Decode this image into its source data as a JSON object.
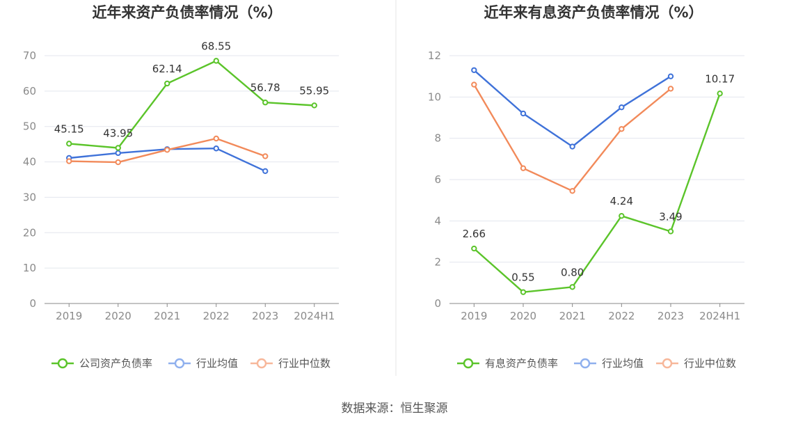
{
  "source_text": "数据来源：恒生聚源",
  "chart_data": [
    {
      "type": "line",
      "title": "近年来资产负债率情况（%）",
      "categories": [
        "2019",
        "2020",
        "2021",
        "2022",
        "2023",
        "2024H1"
      ],
      "ylim": [
        0,
        70
      ],
      "yticks": [
        0,
        10,
        20,
        30,
        40,
        50,
        60,
        70
      ],
      "ytick_labels": [
        "0",
        "10",
        "20",
        "30",
        "40",
        "50",
        "60",
        "70"
      ],
      "grid": true,
      "legend_position": "bottom",
      "series": [
        {
          "name": "公司资产负债率",
          "color": "#5bc42a",
          "values": [
            45.15,
            43.95,
            62.14,
            68.55,
            56.78,
            55.95
          ],
          "labels": [
            "45.15",
            "43.95",
            "62.14",
            "68.55",
            "56.78",
            "55.95"
          ]
        },
        {
          "name": "行业均值",
          "color": "#3f72d9",
          "values": [
            41.1,
            42.5,
            43.6,
            43.8,
            37.4,
            null
          ]
        },
        {
          "name": "行业中位数",
          "color": "#f28a5a",
          "values": [
            40.2,
            39.9,
            43.4,
            46.6,
            41.6,
            null
          ]
        }
      ]
    },
    {
      "type": "line",
      "title": "近年来有息资产负债率情况（%）",
      "categories": [
        "2019",
        "2020",
        "2021",
        "2022",
        "2023",
        "2024H1"
      ],
      "ylim": [
        0,
        12
      ],
      "yticks": [
        0,
        2,
        4,
        6,
        8,
        10,
        12
      ],
      "ytick_labels": [
        "0",
        "2",
        "4",
        "6",
        "8",
        "10",
        "12"
      ],
      "grid": true,
      "legend_position": "bottom",
      "series": [
        {
          "name": "有息资产负债率",
          "color": "#5bc42a",
          "values": [
            2.66,
            0.55,
            0.8,
            4.24,
            3.49,
            10.17
          ],
          "labels": [
            "2.66",
            "0.55",
            "0.80",
            "4.24",
            "3.49",
            "10.17"
          ]
        },
        {
          "name": "行业均值",
          "color": "#3f72d9",
          "values": [
            11.3,
            9.2,
            7.6,
            9.5,
            11.0,
            null
          ]
        },
        {
          "name": "行业中位数",
          "color": "#f28a5a",
          "values": [
            10.6,
            6.55,
            5.45,
            8.45,
            10.4,
            null
          ]
        }
      ]
    }
  ]
}
